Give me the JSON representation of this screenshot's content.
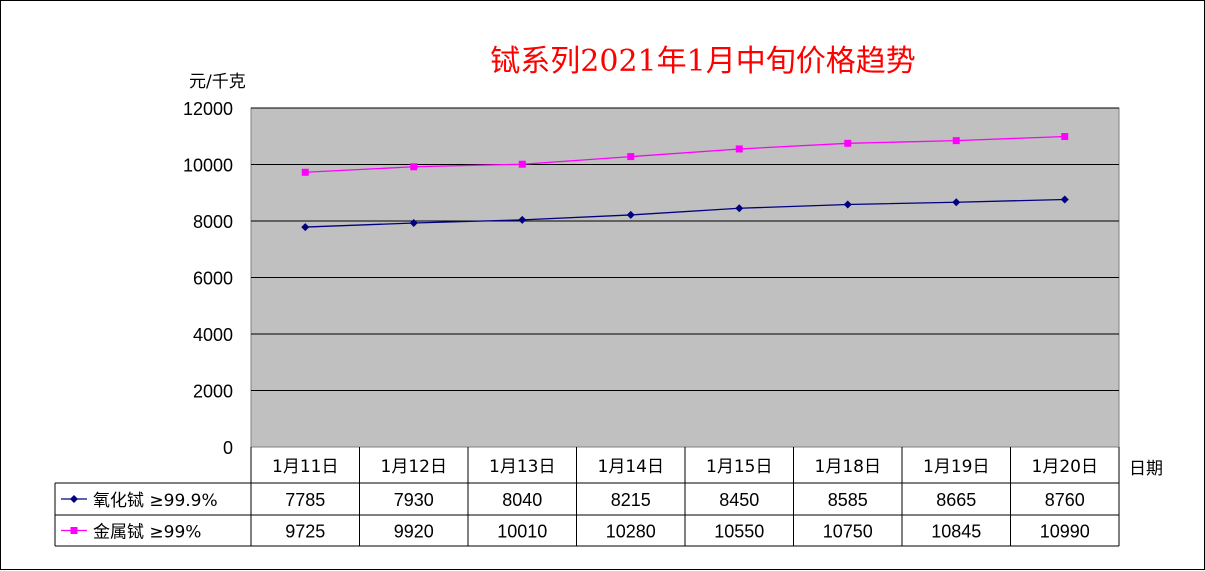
{
  "colors": {
    "plot_bg": "#c0c0c0",
    "series_oxide": "#000080",
    "series_metal": "#ff00ff",
    "title": "#ff0000"
  },
  "chart_data": {
    "type": "line",
    "title": "铽系列2021年1月中旬价格趋势",
    "ylabel": "元/千克",
    "xlabel": "日期",
    "ylim": [
      0,
      12000
    ],
    "yticks": [
      "0",
      "2000",
      "4000",
      "6000",
      "8000",
      "10000",
      "12000"
    ],
    "grid": true,
    "legend": "data-table-left",
    "categories": [
      "1月11日",
      "1月12日",
      "1月13日",
      "1月14日",
      "1月15日",
      "1月18日",
      "1月19日",
      "1月20日"
    ],
    "series": [
      {
        "name": "氧化铽  ≥99.9%",
        "marker": "diamond",
        "values": [
          7785,
          7930,
          8040,
          8215,
          8450,
          8585,
          8665,
          8760
        ]
      },
      {
        "name": "金属铽  ≥99%",
        "marker": "square",
        "values": [
          9725,
          9920,
          10010,
          10280,
          10550,
          10750,
          10845,
          10990
        ]
      }
    ]
  }
}
